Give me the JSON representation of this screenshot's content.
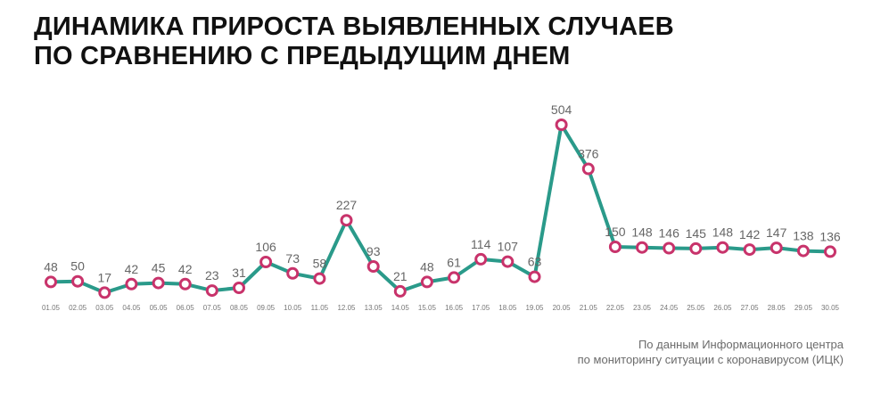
{
  "title": {
    "line1": "ДИНАМИКА ПРИРОСТА ВЫЯВЛЕННЫХ СЛУЧАЕВ",
    "line2": "ПО СРАВНЕНИЮ С ПРЕДЫДУЩИМ ДНЕМ"
  },
  "source": {
    "line1": "По данным Информационного центра",
    "line2": "по мониторингу ситуации с коронавирусом (ИЦК)"
  },
  "colors": {
    "line": "#2a9a8a",
    "marker_stroke": "#c8336b",
    "marker_fill": "#ffffff"
  },
  "chart_data": {
    "type": "line",
    "title": "ДИНАМИКА ПРИРОСТА ВЫЯВЛЕННЫХ СЛУЧАЕВ ПО СРАВНЕНИЮ С ПРЕДЫДУЩИМ ДНЕМ",
    "xlabel": "",
    "ylabel": "",
    "grid": false,
    "legend": "none",
    "ylim": [
      0,
      504
    ],
    "categories": [
      "01.05",
      "02.05",
      "03.05",
      "04.05",
      "05.05",
      "06.05",
      "07.05",
      "08.05",
      "09.05",
      "10.05",
      "11.05",
      "12.05",
      "13.05",
      "14.05",
      "15.05",
      "16.05",
      "17.05",
      "18.05",
      "19.05",
      "20.05",
      "21.05",
      "22.05",
      "23.05",
      "24.05",
      "25.05",
      "26.05",
      "27.05",
      "28.05",
      "29.05",
      "30.05"
    ],
    "series": [
      {
        "values": [
          48,
          50,
          17,
          42,
          45,
          42,
          23,
          31,
          106,
          73,
          58,
          227,
          93,
          21,
          48,
          61,
          114,
          107,
          63,
          504,
          376,
          150,
          148,
          146,
          145,
          148,
          142,
          147,
          138,
          136
        ]
      }
    ]
  }
}
